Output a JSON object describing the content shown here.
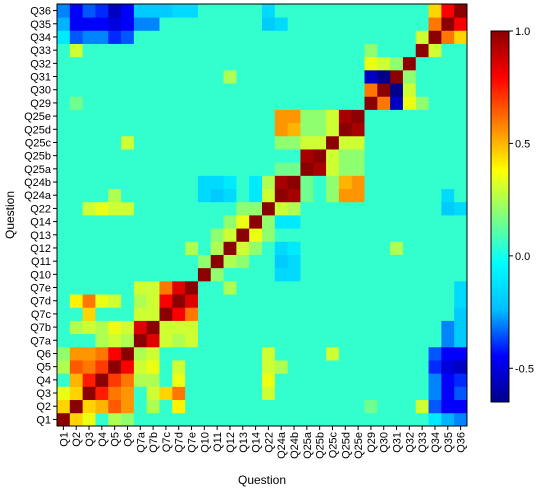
{
  "chart_data": {
    "type": "heatmap",
    "title": "",
    "xlabel": "Question",
    "ylabel": "Question",
    "labels": [
      "Q1",
      "Q2",
      "Q3",
      "Q4",
      "Q5",
      "Q6",
      "Q7a",
      "Q7b",
      "Q7c",
      "Q7d",
      "Q7e",
      "Q10",
      "Q11",
      "Q12",
      "Q13",
      "Q14",
      "Q22",
      "Q24a",
      "Q24b",
      "Q25a",
      "Q25b",
      "Q25c",
      "Q25d",
      "Q25e",
      "Q29",
      "Q30",
      "Q31",
      "Q32",
      "Q33",
      "Q34",
      "Q35",
      "Q36"
    ],
    "value_range": [
      -0.65,
      1.0
    ],
    "colorbar_ticks": [
      1.0,
      0.5,
      0.0,
      -0.5
    ],
    "colorbar_tick_labels": [
      "1.0",
      "0.5",
      "0.0",
      "-0.5"
    ],
    "colormap": [
      "#00008B",
      "#0000FF",
      "#00BFFF",
      "#00FFFF",
      "#7FFF7F",
      "#FFFF00",
      "#FF7F00",
      "#FF0000",
      "#8B0000"
    ],
    "baseline": 0.05,
    "pairs": [
      [
        "Q1",
        "Q2",
        0.45
      ],
      [
        "Q1",
        "Q3",
        0.35
      ],
      [
        "Q1",
        "Q5",
        0.25
      ],
      [
        "Q1",
        "Q6",
        0.2
      ],
      [
        "Q1",
        "Q34",
        -0.1
      ],
      [
        "Q1",
        "Q35",
        -0.25
      ],
      [
        "Q1",
        "Q36",
        -0.3
      ],
      [
        "Q2",
        "Q3",
        0.45
      ],
      [
        "Q2",
        "Q4",
        0.5
      ],
      [
        "Q2",
        "Q5",
        0.65
      ],
      [
        "Q2",
        "Q6",
        0.55
      ],
      [
        "Q2",
        "Q7b",
        0.25
      ],
      [
        "Q2",
        "Q7d",
        0.4
      ],
      [
        "Q2",
        "Q29",
        0.15
      ],
      [
        "Q2",
        "Q33",
        0.3
      ],
      [
        "Q2",
        "Q34",
        -0.35
      ],
      [
        "Q2",
        "Q35",
        -0.45
      ],
      [
        "Q2",
        "Q36",
        -0.45
      ],
      [
        "Q3",
        "Q4",
        0.75
      ],
      [
        "Q3",
        "Q5",
        0.6
      ],
      [
        "Q3",
        "Q6",
        0.55
      ],
      [
        "Q3",
        "Q7b",
        0.3
      ],
      [
        "Q3",
        "Q7c",
        0.45
      ],
      [
        "Q3",
        "Q7d",
        0.6
      ],
      [
        "Q3",
        "Q22",
        0.3
      ],
      [
        "Q3",
        "Q34",
        -0.3
      ],
      [
        "Q3",
        "Q35",
        -0.45
      ],
      [
        "Q3",
        "Q36",
        -0.35
      ],
      [
        "Q4",
        "Q5",
        0.7
      ],
      [
        "Q4",
        "Q6",
        0.6
      ],
      [
        "Q4",
        "Q7a",
        0.25
      ],
      [
        "Q4",
        "Q7b",
        0.25
      ],
      [
        "Q4",
        "Q7d",
        0.35
      ],
      [
        "Q4",
        "Q22",
        0.35
      ],
      [
        "Q4",
        "Q34",
        -0.3
      ],
      [
        "Q4",
        "Q35",
        -0.45
      ],
      [
        "Q4",
        "Q36",
        -0.4
      ],
      [
        "Q5",
        "Q6",
        0.8
      ],
      [
        "Q5",
        "Q7a",
        0.3
      ],
      [
        "Q5",
        "Q7b",
        0.35
      ],
      [
        "Q5",
        "Q7d",
        0.3
      ],
      [
        "Q5",
        "Q22",
        0.3
      ],
      [
        "Q5",
        "Q24a",
        0.25
      ],
      [
        "Q5",
        "Q34",
        -0.4
      ],
      [
        "Q5",
        "Q35",
        -0.5
      ],
      [
        "Q5",
        "Q36",
        -0.55
      ],
      [
        "Q6",
        "Q7a",
        0.25
      ],
      [
        "Q6",
        "Q7b",
        0.3
      ],
      [
        "Q6",
        "Q22",
        0.3
      ],
      [
        "Q6",
        "Q25c",
        0.3
      ],
      [
        "Q6",
        "Q34",
        -0.35
      ],
      [
        "Q6",
        "Q35",
        -0.45
      ],
      [
        "Q6",
        "Q36",
        -0.45
      ],
      [
        "Q7a",
        "Q7b",
        0.85
      ],
      [
        "Q7a",
        "Q7c",
        0.3
      ],
      [
        "Q7a",
        "Q7d",
        0.25
      ],
      [
        "Q7a",
        "Q7e",
        0.3
      ],
      [
        "Q7a",
        "Q35",
        -0.3
      ],
      [
        "Q7a",
        "Q36",
        -0.2
      ],
      [
        "Q7b",
        "Q7c",
        0.3
      ],
      [
        "Q7b",
        "Q7d",
        0.3
      ],
      [
        "Q7b",
        "Q7e",
        0.3
      ],
      [
        "Q7b",
        "Q35",
        -0.3
      ],
      [
        "Q7b",
        "Q36",
        -0.2
      ],
      [
        "Q7c",
        "Q7d",
        0.8
      ],
      [
        "Q7c",
        "Q7e",
        0.6
      ],
      [
        "Q7c",
        "Q36",
        -0.2
      ],
      [
        "Q7d",
        "Q7e",
        0.85
      ],
      [
        "Q7d",
        "Q36",
        -0.15
      ],
      [
        "Q7e",
        "Q12",
        0.25
      ],
      [
        "Q7e",
        "Q36",
        -0.15
      ],
      [
        "Q10",
        "Q11",
        0.2
      ],
      [
        "Q10",
        "Q24a",
        -0.15
      ],
      [
        "Q10",
        "Q24b",
        -0.15
      ],
      [
        "Q11",
        "Q12",
        0.25
      ],
      [
        "Q11",
        "Q13",
        0.2
      ],
      [
        "Q11",
        "Q24a",
        -0.2
      ],
      [
        "Q11",
        "Q24b",
        -0.15
      ],
      [
        "Q12",
        "Q13",
        0.3
      ],
      [
        "Q12",
        "Q14",
        0.2
      ],
      [
        "Q12",
        "Q24a",
        -0.15
      ],
      [
        "Q12",
        "Q24b",
        -0.1
      ],
      [
        "Q12",
        "Q31",
        0.25
      ],
      [
        "Q13",
        "Q14",
        0.35
      ],
      [
        "Q13",
        "Q22",
        0.2
      ],
      [
        "Q14",
        "Q22",
        0.2
      ],
      [
        "Q14",
        "Q24a",
        -0.1
      ],
      [
        "Q14",
        "Q24b",
        -0.1
      ],
      [
        "Q22",
        "Q24a",
        0.3
      ],
      [
        "Q22",
        "Q24b",
        0.25
      ],
      [
        "Q22",
        "Q35",
        -0.2
      ],
      [
        "Q22",
        "Q36",
        -0.15
      ],
      [
        "Q24a",
        "Q24b",
        0.95
      ],
      [
        "Q24a",
        "Q25d",
        0.55
      ],
      [
        "Q24a",
        "Q25e",
        0.55
      ],
      [
        "Q24a",
        "Q25c",
        0.2
      ],
      [
        "Q24a",
        "Q25a",
        0.15
      ],
      [
        "Q24a",
        "Q35",
        -0.15
      ],
      [
        "Q24b",
        "Q25d",
        0.5
      ],
      [
        "Q24b",
        "Q25e",
        0.55
      ],
      [
        "Q24b",
        "Q25c",
        0.2
      ],
      [
        "Q24b",
        "Q25a",
        0.15
      ],
      [
        "Q25a",
        "Q25b",
        0.95
      ],
      [
        "Q25a",
        "Q25c",
        0.3
      ],
      [
        "Q25a",
        "Q25d",
        0.2
      ],
      [
        "Q25a",
        "Q25e",
        0.2
      ],
      [
        "Q25b",
        "Q25c",
        0.3
      ],
      [
        "Q25b",
        "Q25d",
        0.2
      ],
      [
        "Q25b",
        "Q25e",
        0.2
      ],
      [
        "Q25c",
        "Q25d",
        0.3
      ],
      [
        "Q25c",
        "Q25e",
        0.3
      ],
      [
        "Q25d",
        "Q25e",
        0.95
      ],
      [
        "Q29",
        "Q30",
        0.6
      ],
      [
        "Q29",
        "Q31",
        -0.55
      ],
      [
        "Q29",
        "Q32",
        0.35
      ],
      [
        "Q29",
        "Q33",
        0.2
      ],
      [
        "Q30",
        "Q31",
        -0.65
      ],
      [
        "Q30",
        "Q32",
        0.3
      ],
      [
        "Q31",
        "Q32",
        0.2
      ],
      [
        "Q33",
        "Q34",
        0.3
      ],
      [
        "Q34",
        "Q35",
        0.6
      ],
      [
        "Q34",
        "Q36",
        0.45
      ],
      [
        "Q35",
        "Q36",
        0.8
      ]
    ]
  }
}
